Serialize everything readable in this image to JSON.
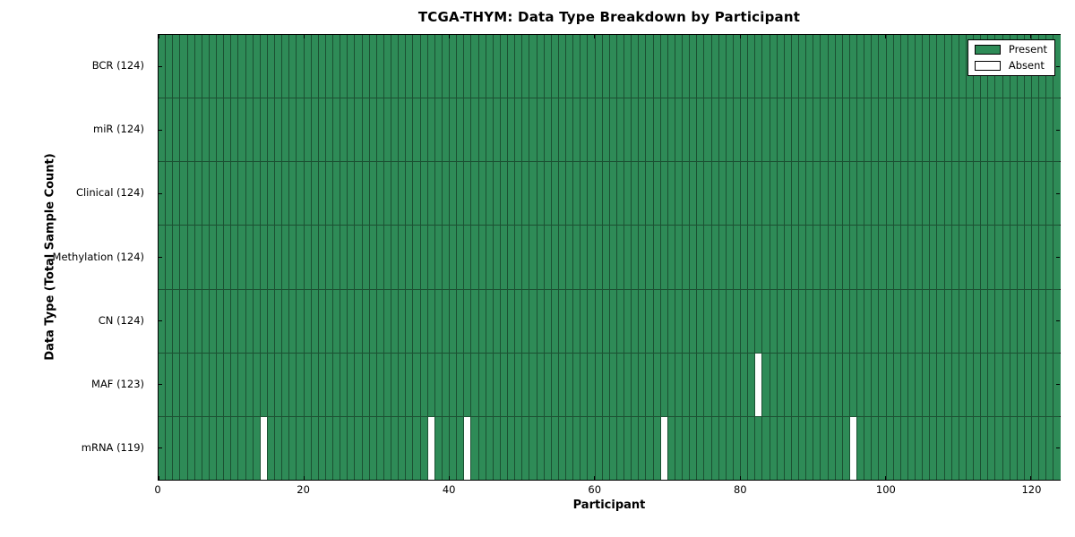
{
  "title": "TCGA-THYM: Data Type Breakdown by Participant",
  "axes": {
    "xlabel": "Participant",
    "ylabel": "Data Type (Total Sample Count)"
  },
  "legend": {
    "entries": [
      {
        "label": "Present",
        "key": "present"
      },
      {
        "label": "Absent",
        "key": "absent"
      }
    ],
    "position": "upper right"
  },
  "colors": {
    "present": "#2e8b57",
    "absent": "#ffffff",
    "cell_edge": "#1b5032",
    "frame": "#000000",
    "background": "#ffffff"
  },
  "chart_data": {
    "type": "heatmap",
    "title": "TCGA-THYM: Data Type Breakdown by Participant",
    "xlabel": "Participant",
    "ylabel": "Data Type (Total Sample Count)",
    "x_ticks": [
      0,
      20,
      40,
      60,
      80,
      100,
      120
    ],
    "xlim": [
      0,
      124
    ],
    "n_participants": 124,
    "n_rows": 7,
    "grid": "cell-borders",
    "legend_entries": [
      "Present",
      "Absent"
    ],
    "legend_position": "upper right",
    "cell_states": {
      "present": 1,
      "absent": 0
    },
    "rows": [
      {
        "label": "BCR (124)",
        "data_type": "BCR",
        "total_sample_count": 124,
        "absent_participants": []
      },
      {
        "label": "miR (124)",
        "data_type": "miR",
        "total_sample_count": 124,
        "absent_participants": []
      },
      {
        "label": "Clinical (124)",
        "data_type": "Clinical",
        "total_sample_count": 124,
        "absent_participants": []
      },
      {
        "label": "Methylation (124)",
        "data_type": "Methylation",
        "total_sample_count": 124,
        "absent_participants": []
      },
      {
        "label": "CN (124)",
        "data_type": "CN",
        "total_sample_count": 124,
        "absent_participants": []
      },
      {
        "label": "MAF (123)",
        "data_type": "MAF",
        "total_sample_count": 123,
        "absent_participants": [
          82
        ]
      },
      {
        "label": "mRNA (119)",
        "data_type": "mRNA",
        "total_sample_count": 119,
        "absent_participants": [
          14,
          37,
          42,
          69,
          95
        ]
      }
    ]
  }
}
